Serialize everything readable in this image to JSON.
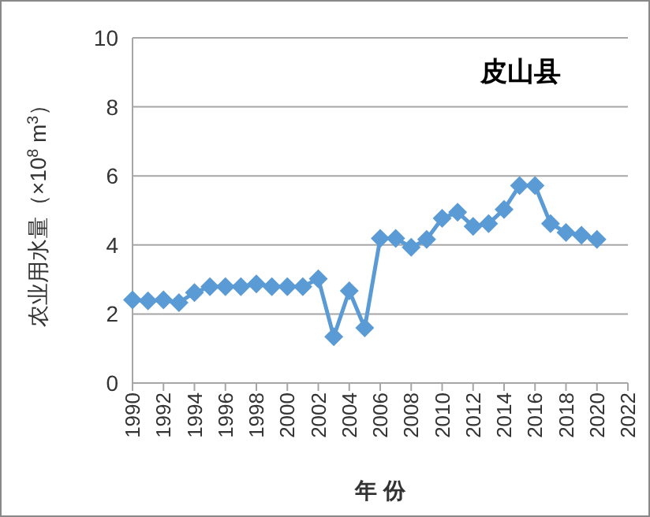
{
  "chart_data": {
    "type": "line",
    "title": "皮山县",
    "xlabel": "年 份",
    "ylabel": "农业用水量（×10$^{8}$ m$^{3}$）",
    "x": [
      1990,
      1991,
      1992,
      1993,
      1994,
      1995,
      1996,
      1997,
      1998,
      1999,
      2000,
      2001,
      2002,
      2003,
      2004,
      2005,
      2006,
      2007,
      2008,
      2009,
      2010,
      2011,
      2012,
      2013,
      2014,
      2015,
      2016,
      2017,
      2018,
      2019,
      2020
    ],
    "series": [
      {
        "color": "#5b9bd5",
        "values": [
          2.41,
          2.38,
          2.41,
          2.33,
          2.62,
          2.79,
          2.79,
          2.79,
          2.87,
          2.79,
          2.79,
          2.79,
          3.02,
          1.34,
          2.67,
          1.6,
          4.19,
          4.19,
          3.93,
          4.16,
          4.77,
          4.95,
          4.54,
          4.62,
          5.03,
          5.72,
          5.72,
          4.62,
          4.36,
          4.28,
          4.16
        ]
      }
    ],
    "xlim": [
      1990,
      2022
    ],
    "xticks": [
      1990,
      1992,
      1994,
      1996,
      1998,
      2000,
      2002,
      2004,
      2006,
      2008,
      2010,
      2012,
      2014,
      2016,
      2018,
      2020,
      2022
    ],
    "ylim": [
      0,
      10
    ],
    "yticks": [
      0,
      2,
      4,
      6,
      8,
      10
    ],
    "grid": "y",
    "marker": "diamond",
    "line_style": "solid"
  }
}
